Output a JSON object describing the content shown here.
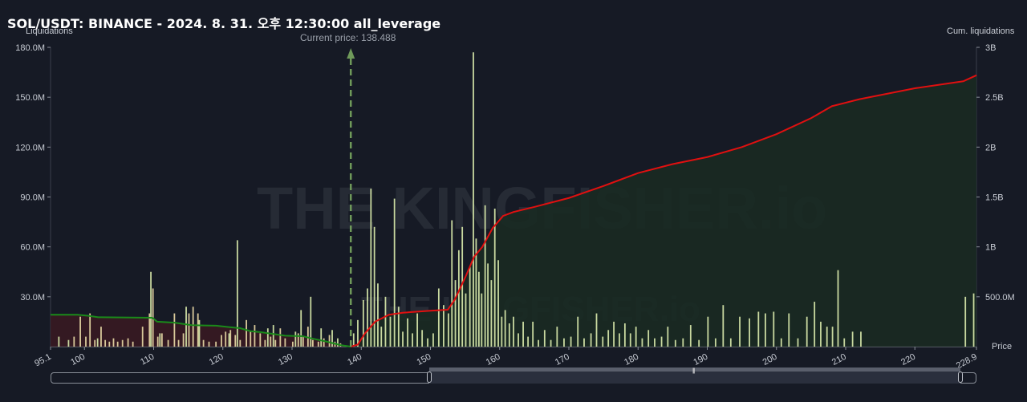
{
  "title": "SOL/USDT: BINANCE - 2024. 8. 31. 오후 12:30:00 all_leverage",
  "current_price_label": "Current price: 138.488",
  "left_axis_name": "Liquidations",
  "right_axis_name": "Cum. liquidations",
  "x_axis_name": "Price",
  "watermark": "THE KINGFISHER.io",
  "colors": {
    "background": "#161a25",
    "short_bars": "#c9d9a0",
    "long_bars": "#d8c89a",
    "cum_short_line": "#e01010",
    "cum_long_line": "#1a8a1a",
    "cum_short_fill": "#1a2a22",
    "cum_long_fill": "#3a1a22",
    "current_price_marker": "#6f9a5a"
  },
  "chart_data": {
    "type": "bar",
    "x_range": [
      95.1,
      228.9
    ],
    "x_ticks": [
      "95.1",
      "100",
      "110",
      "120",
      "130",
      "140",
      "150",
      "160",
      "170",
      "180",
      "190",
      "200",
      "210",
      "220",
      "228.9"
    ],
    "ylabel_left": "Liquidations",
    "ylabel_right": "Cum. liquidations",
    "xlabel": "Price",
    "ylim_left": [
      0,
      180000000
    ],
    "ylim_right": [
      0,
      3000000000
    ],
    "y_ticks_left": [
      "30.0M",
      "60.0M",
      "90.0M",
      "120.0M",
      "150.0M",
      "180.0M"
    ],
    "y_ticks_right": [
      "500.0M",
      "1B",
      "1.5B",
      "2B",
      "2.5B",
      "3B"
    ],
    "current_price": 138.488,
    "long_liquidation_bars": [
      {
        "x": 98.5,
        "y": 6000000
      },
      {
        "x": 99.4,
        "y": 18000000
      },
      {
        "x": 100.2,
        "y": 6000000
      },
      {
        "x": 100.8,
        "y": 20000000
      },
      {
        "x": 101.5,
        "y": 4000000
      },
      {
        "x": 102.4,
        "y": 12000000
      },
      {
        "x": 103.0,
        "y": 4000000
      },
      {
        "x": 103.6,
        "y": 3000000
      },
      {
        "x": 104.2,
        "y": 5000000
      },
      {
        "x": 104.8,
        "y": 3000000
      },
      {
        "x": 105.5,
        "y": 4000000
      },
      {
        "x": 106.3,
        "y": 5000000
      },
      {
        "x": 107.0,
        "y": 3000000
      },
      {
        "x": 108.4,
        "y": 12000000
      },
      {
        "x": 109.4,
        "y": 20000000
      },
      {
        "x": 109.9,
        "y": 35000000
      },
      {
        "x": 110.6,
        "y": 6000000
      },
      {
        "x": 111.2,
        "y": 8000000
      },
      {
        "x": 112.1,
        "y": 4000000
      },
      {
        "x": 113.0,
        "y": 20000000
      },
      {
        "x": 113.6,
        "y": 4000000
      },
      {
        "x": 114.3,
        "y": 8000000
      },
      {
        "x": 115.1,
        "y": 20000000
      },
      {
        "x": 115.7,
        "y": 24000000
      },
      {
        "x": 116.4,
        "y": 20000000
      },
      {
        "x": 117.2,
        "y": 4000000
      },
      {
        "x": 118.0,
        "y": 3000000
      },
      {
        "x": 119.0,
        "y": 3000000
      },
      {
        "x": 119.8,
        "y": 7000000
      },
      {
        "x": 120.4,
        "y": 9000000
      },
      {
        "x": 121.1,
        "y": 10000000
      },
      {
        "x": 121.8,
        "y": 7000000
      },
      {
        "x": 122.5,
        "y": 4000000
      },
      {
        "x": 123.4,
        "y": 16000000
      },
      {
        "x": 124.0,
        "y": 9000000
      },
      {
        "x": 124.6,
        "y": 13000000
      },
      {
        "x": 125.4,
        "y": 8000000
      },
      {
        "x": 126.1,
        "y": 4000000
      },
      {
        "x": 126.9,
        "y": 6000000
      },
      {
        "x": 127.6,
        "y": 4000000
      },
      {
        "x": 128.3,
        "y": 11000000
      },
      {
        "x": 129.0,
        "y": 5000000
      },
      {
        "x": 130.1,
        "y": 3000000
      },
      {
        "x": 130.9,
        "y": 8000000
      },
      {
        "x": 131.6,
        "y": 6000000
      },
      {
        "x": 132.3,
        "y": 12000000
      },
      {
        "x": 133.0,
        "y": 4000000
      },
      {
        "x": 133.8,
        "y": 3000000
      },
      {
        "x": 134.6,
        "y": 5000000
      },
      {
        "x": 135.4,
        "y": 7000000
      },
      {
        "x": 136.2,
        "y": 3000000
      },
      {
        "x": 137.0,
        "y": 2000000
      }
    ],
    "short_liquidation_bars": [
      {
        "x": 96.3,
        "y": 6000000
      },
      {
        "x": 97.7,
        "y": 4000000
      },
      {
        "x": 101.9,
        "y": 5000000
      },
      {
        "x": 109.6,
        "y": 45000000
      },
      {
        "x": 110.9,
        "y": 8000000
      },
      {
        "x": 114.7,
        "y": 24000000
      },
      {
        "x": 116.6,
        "y": 16000000
      },
      {
        "x": 120.9,
        "y": 8000000
      },
      {
        "x": 122.1,
        "y": 64000000
      },
      {
        "x": 126.5,
        "y": 11000000
      },
      {
        "x": 127.3,
        "y": 13000000
      },
      {
        "x": 130.5,
        "y": 9000000
      },
      {
        "x": 131.3,
        "y": 22000000
      },
      {
        "x": 132.7,
        "y": 30000000
      },
      {
        "x": 134.2,
        "y": 11000000
      },
      {
        "x": 135.8,
        "y": 10000000
      },
      {
        "x": 136.6,
        "y": 5000000
      },
      {
        "x": 138.9,
        "y": 8000000
      },
      {
        "x": 139.5,
        "y": 16000000
      },
      {
        "x": 140.3,
        "y": 28000000
      },
      {
        "x": 140.9,
        "y": 35000000
      },
      {
        "x": 141.4,
        "y": 95000000
      },
      {
        "x": 141.9,
        "y": 72000000
      },
      {
        "x": 142.4,
        "y": 38000000
      },
      {
        "x": 142.9,
        "y": 12000000
      },
      {
        "x": 143.5,
        "y": 30000000
      },
      {
        "x": 144.2,
        "y": 18000000
      },
      {
        "x": 144.8,
        "y": 89000000
      },
      {
        "x": 145.4,
        "y": 24000000
      },
      {
        "x": 146.0,
        "y": 9000000
      },
      {
        "x": 146.7,
        "y": 17000000
      },
      {
        "x": 147.4,
        "y": 8000000
      },
      {
        "x": 148.1,
        "y": 20000000
      },
      {
        "x": 148.8,
        "y": 10000000
      },
      {
        "x": 149.6,
        "y": 5000000
      },
      {
        "x": 150.4,
        "y": 8000000
      },
      {
        "x": 151.2,
        "y": 35000000
      },
      {
        "x": 151.9,
        "y": 25000000
      },
      {
        "x": 152.6,
        "y": 20000000
      },
      {
        "x": 153.1,
        "y": 76000000
      },
      {
        "x": 153.6,
        "y": 40000000
      },
      {
        "x": 154.1,
        "y": 58000000
      },
      {
        "x": 154.6,
        "y": 72000000
      },
      {
        "x": 155.1,
        "y": 32000000
      },
      {
        "x": 155.7,
        "y": 48000000
      },
      {
        "x": 156.2,
        "y": 177000000
      },
      {
        "x": 156.6,
        "y": 65000000
      },
      {
        "x": 157.0,
        "y": 45000000
      },
      {
        "x": 157.4,
        "y": 32000000
      },
      {
        "x": 157.9,
        "y": 85000000
      },
      {
        "x": 158.3,
        "y": 50000000
      },
      {
        "x": 158.8,
        "y": 40000000
      },
      {
        "x": 159.3,
        "y": 83000000
      },
      {
        "x": 159.8,
        "y": 52000000
      },
      {
        "x": 160.3,
        "y": 18000000
      },
      {
        "x": 160.8,
        "y": 22000000
      },
      {
        "x": 161.4,
        "y": 14000000
      },
      {
        "x": 162.0,
        "y": 18000000
      },
      {
        "x": 162.7,
        "y": 8000000
      },
      {
        "x": 163.4,
        "y": 15000000
      },
      {
        "x": 164.1,
        "y": 6000000
      },
      {
        "x": 164.8,
        "y": 15000000
      },
      {
        "x": 165.6,
        "y": 4000000
      },
      {
        "x": 166.5,
        "y": 10000000
      },
      {
        "x": 167.4,
        "y": 4000000
      },
      {
        "x": 168.3,
        "y": 12000000
      },
      {
        "x": 169.3,
        "y": 5000000
      },
      {
        "x": 170.3,
        "y": 6000000
      },
      {
        "x": 171.3,
        "y": 18000000
      },
      {
        "x": 172.2,
        "y": 5000000
      },
      {
        "x": 173.2,
        "y": 8000000
      },
      {
        "x": 174.0,
        "y": 20000000
      },
      {
        "x": 174.9,
        "y": 6000000
      },
      {
        "x": 175.7,
        "y": 10000000
      },
      {
        "x": 176.5,
        "y": 15000000
      },
      {
        "x": 177.3,
        "y": 8000000
      },
      {
        "x": 178.1,
        "y": 14000000
      },
      {
        "x": 178.9,
        "y": 8000000
      },
      {
        "x": 179.7,
        "y": 12000000
      },
      {
        "x": 180.6,
        "y": 5000000
      },
      {
        "x": 181.5,
        "y": 10000000
      },
      {
        "x": 182.4,
        "y": 5000000
      },
      {
        "x": 183.4,
        "y": 6000000
      },
      {
        "x": 184.3,
        "y": 12000000
      },
      {
        "x": 185.4,
        "y": 4000000
      },
      {
        "x": 186.5,
        "y": 5000000
      },
      {
        "x": 187.6,
        "y": 13000000
      },
      {
        "x": 188.8,
        "y": 4000000
      },
      {
        "x": 190.1,
        "y": 18000000
      },
      {
        "x": 191.2,
        "y": 5000000
      },
      {
        "x": 192.3,
        "y": 25000000
      },
      {
        "x": 193.4,
        "y": 5000000
      },
      {
        "x": 194.7,
        "y": 18000000
      },
      {
        "x": 196.1,
        "y": 17000000
      },
      {
        "x": 197.4,
        "y": 21000000
      },
      {
        "x": 198.4,
        "y": 20000000
      },
      {
        "x": 199.6,
        "y": 21000000
      },
      {
        "x": 200.7,
        "y": 5000000
      },
      {
        "x": 201.8,
        "y": 20000000
      },
      {
        "x": 203.1,
        "y": 5000000
      },
      {
        "x": 204.4,
        "y": 18000000
      },
      {
        "x": 205.5,
        "y": 27000000
      },
      {
        "x": 206.4,
        "y": 15000000
      },
      {
        "x": 207.3,
        "y": 12000000
      },
      {
        "x": 208.1,
        "y": 12000000
      },
      {
        "x": 208.9,
        "y": 46000000
      },
      {
        "x": 209.8,
        "y": 5000000
      },
      {
        "x": 211.0,
        "y": 9000000
      },
      {
        "x": 212.2,
        "y": 9000000
      },
      {
        "x": 227.3,
        "y": 30000000
      },
      {
        "x": 228.5,
        "y": 32000000
      }
    ],
    "cumulative_long_liquidations": [
      {
        "x": 95.1,
        "y": 320000000
      },
      {
        "x": 99.0,
        "y": 320000000
      },
      {
        "x": 100.5,
        "y": 310000000
      },
      {
        "x": 102.0,
        "y": 295000000
      },
      {
        "x": 109.8,
        "y": 290000000
      },
      {
        "x": 110.5,
        "y": 250000000
      },
      {
        "x": 113.0,
        "y": 240000000
      },
      {
        "x": 115.5,
        "y": 215000000
      },
      {
        "x": 119.0,
        "y": 210000000
      },
      {
        "x": 121.0,
        "y": 195000000
      },
      {
        "x": 122.5,
        "y": 185000000
      },
      {
        "x": 124.0,
        "y": 155000000
      },
      {
        "x": 125.5,
        "y": 145000000
      },
      {
        "x": 127.0,
        "y": 130000000
      },
      {
        "x": 129.0,
        "y": 110000000
      },
      {
        "x": 131.5,
        "y": 105000000
      },
      {
        "x": 133.0,
        "y": 80000000
      },
      {
        "x": 135.0,
        "y": 50000000
      },
      {
        "x": 137.0,
        "y": 15000000
      },
      {
        "x": 138.488,
        "y": 0
      }
    ],
    "cumulative_short_liquidations": [
      {
        "x": 138.488,
        "y": 0
      },
      {
        "x": 139.5,
        "y": 20000000
      },
      {
        "x": 140.5,
        "y": 130000000
      },
      {
        "x": 142.0,
        "y": 250000000
      },
      {
        "x": 144.0,
        "y": 320000000
      },
      {
        "x": 146.0,
        "y": 340000000
      },
      {
        "x": 150.0,
        "y": 360000000
      },
      {
        "x": 152.5,
        "y": 370000000
      },
      {
        "x": 153.5,
        "y": 470000000
      },
      {
        "x": 155.0,
        "y": 690000000
      },
      {
        "x": 156.3,
        "y": 900000000
      },
      {
        "x": 157.5,
        "y": 1000000000
      },
      {
        "x": 159.0,
        "y": 1190000000
      },
      {
        "x": 160.5,
        "y": 1310000000
      },
      {
        "x": 162.0,
        "y": 1350000000
      },
      {
        "x": 165.0,
        "y": 1400000000
      },
      {
        "x": 170.0,
        "y": 1490000000
      },
      {
        "x": 175.0,
        "y": 1610000000
      },
      {
        "x": 180.0,
        "y": 1740000000
      },
      {
        "x": 185.0,
        "y": 1830000000
      },
      {
        "x": 190.0,
        "y": 1900000000
      },
      {
        "x": 195.0,
        "y": 2000000000
      },
      {
        "x": 200.0,
        "y": 2130000000
      },
      {
        "x": 205.0,
        "y": 2290000000
      },
      {
        "x": 208.0,
        "y": 2410000000
      },
      {
        "x": 212.0,
        "y": 2480000000
      },
      {
        "x": 220.0,
        "y": 2590000000
      },
      {
        "x": 227.0,
        "y": 2660000000
      },
      {
        "x": 228.9,
        "y": 2720000000
      }
    ]
  }
}
